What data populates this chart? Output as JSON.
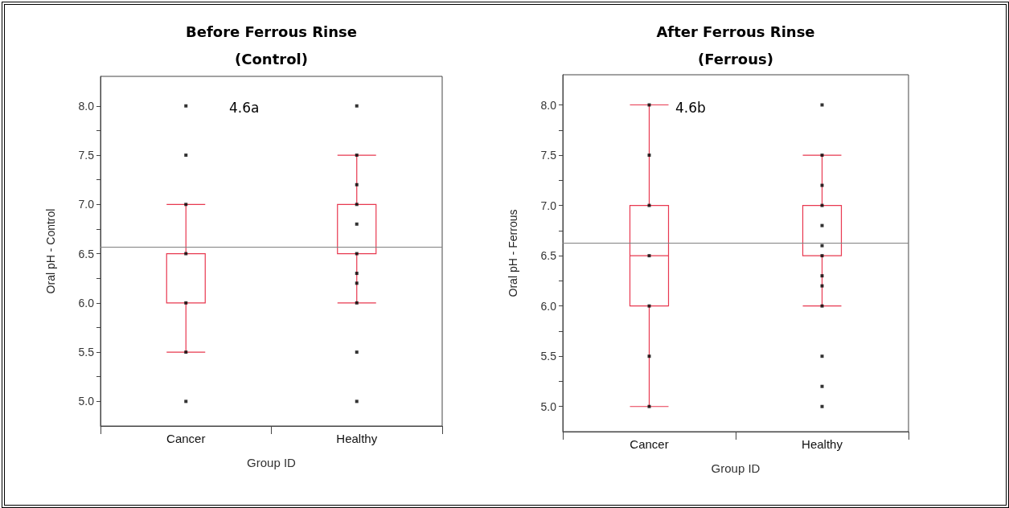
{
  "chart_data": [
    {
      "type": "box",
      "title": "Before Ferrous Rinse\n(Control)",
      "xlabel": "Group ID",
      "ylabel": "Oral pH - Control",
      "categories": [
        "Cancer",
        "Healthy"
      ],
      "annotations": [
        "4.6a"
      ],
      "ylim": [
        4.75,
        8.3
      ],
      "yticks": [
        {
          "value": 5,
          "label": "5.0"
        },
        {
          "value": 5.25,
          "label": null
        },
        {
          "value": 5.5,
          "label": "5.5"
        },
        {
          "value": 5.75,
          "label": null
        },
        {
          "value": 6,
          "label": "6.0"
        },
        {
          "value": 6.25,
          "label": null
        },
        {
          "value": 6.5,
          "label": "6.5"
        },
        {
          "value": 6.75,
          "label": null
        },
        {
          "value": 7,
          "label": "7.0"
        },
        {
          "value": 7.25,
          "label": null
        },
        {
          "value": 7.5,
          "label": "7.5"
        },
        {
          "value": 7.75,
          "label": null
        },
        {
          "value": 8,
          "label": "8.0"
        }
      ],
      "ref_lines": [
        {
          "axis": "y",
          "value": 6.57,
          "color": "#808080"
        }
      ],
      "series": [
        {
          "color": "#e8384f",
          "boxes": [
            {
              "low": 5.5,
              "q1": 6.0,
              "median": 6.5,
              "q3": 6.5,
              "high": 7.0
            },
            {
              "low": 6.0,
              "q1": 6.5,
              "median": 7.0,
              "q3": 7.0,
              "high": 7.5
            }
          ]
        },
        {
          "type": "scatter",
          "color": "#000000",
          "marker": "square",
          "x": [
            "Cancer",
            "Cancer",
            "Cancer",
            "Cancer",
            "Cancer",
            "Cancer",
            "Cancer",
            "Healthy",
            "Healthy",
            "Healthy",
            "Healthy",
            "Healthy",
            "Healthy",
            "Healthy",
            "Healthy",
            "Healthy",
            "Healthy",
            "Healthy"
          ],
          "values": [
            8.0,
            7.5,
            7.0,
            6.5,
            6.0,
            5.5,
            5.0,
            8.0,
            7.5,
            7.2,
            7.0,
            6.8,
            6.5,
            6.3,
            6.2,
            6.0,
            5.5,
            5.0
          ]
        }
      ]
    },
    {
      "type": "box",
      "title": "After Ferrous Rinse\n(Ferrous)",
      "xlabel": "Group ID",
      "ylabel": "Oral pH - Ferrous",
      "categories": [
        "Cancer",
        "Healthy"
      ],
      "annotations": [
        "4.6b"
      ],
      "ylim": [
        4.75,
        8.3
      ],
      "yticks": [
        {
          "value": 5,
          "label": "5.0"
        },
        {
          "value": 5.25,
          "label": null
        },
        {
          "value": 5.5,
          "label": "5.5"
        },
        {
          "value": 5.75,
          "label": null
        },
        {
          "value": 6,
          "label": "6.0"
        },
        {
          "value": 6.25,
          "label": null
        },
        {
          "value": 6.5,
          "label": "6.5"
        },
        {
          "value": 6.75,
          "label": null
        },
        {
          "value": 7,
          "label": "7.0"
        },
        {
          "value": 7.25,
          "label": null
        },
        {
          "value": 7.5,
          "label": "7.5"
        },
        {
          "value": 7.75,
          "label": null
        },
        {
          "value": 8,
          "label": "8.0"
        }
      ],
      "ref_lines": [
        {
          "axis": "y",
          "value": 6.63,
          "color": "#808080"
        }
      ],
      "series": [
        {
          "color": "#e8384f",
          "boxes": [
            {
              "low": 5.0,
              "q1": 6.0,
              "median": 6.5,
              "q3": 7.0,
              "high": 8.0
            },
            {
              "low": 6.0,
              "q1": 6.5,
              "median": 7.0,
              "q3": 7.0,
              "high": 7.5
            }
          ]
        },
        {
          "type": "scatter",
          "color": "#000000",
          "marker": "square",
          "x": [
            "Cancer",
            "Cancer",
            "Cancer",
            "Cancer",
            "Cancer",
            "Cancer",
            "Cancer",
            "Healthy",
            "Healthy",
            "Healthy",
            "Healthy",
            "Healthy",
            "Healthy",
            "Healthy",
            "Healthy",
            "Healthy",
            "Healthy",
            "Healthy",
            "Healthy",
            "Healthy"
          ],
          "values": [
            8.0,
            7.5,
            7.0,
            6.5,
            6.0,
            5.5,
            5.0,
            8.0,
            7.5,
            7.2,
            7.0,
            6.8,
            6.6,
            6.5,
            6.3,
            6.2,
            6.0,
            5.5,
            5.2,
            5.0
          ]
        }
      ]
    }
  ]
}
